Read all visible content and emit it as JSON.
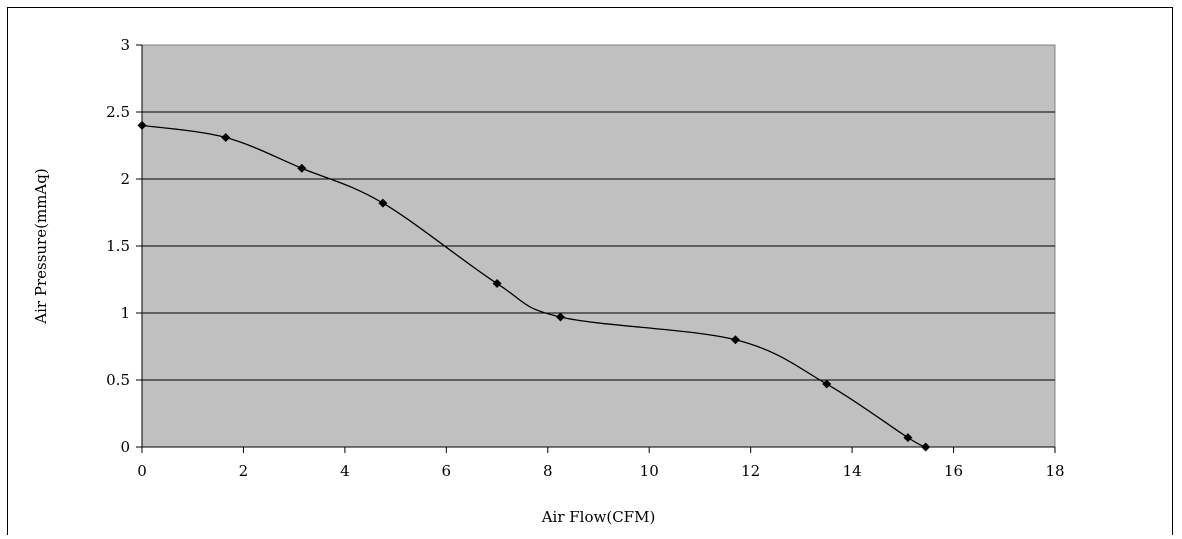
{
  "chart_data": {
    "type": "line",
    "xlabel": "Air Flow(CFM)",
    "ylabel": "Air Pressure(mmAq)",
    "xlim": [
      0,
      18
    ],
    "ylim": [
      0,
      3
    ],
    "xticks": [
      0,
      2,
      4,
      6,
      8,
      10,
      12,
      14,
      16,
      18
    ],
    "yticks": [
      0,
      0.5,
      1,
      1.5,
      2,
      2.5,
      3
    ],
    "grid": "horizontal",
    "legend": "none",
    "smooth": true,
    "marker": "diamond",
    "colors": {
      "plot_background": "#c0c0c0",
      "line": "#000000",
      "marker": "#000000",
      "gridline": "#000000"
    },
    "series": [
      {
        "x": [
          0,
          1.65,
          3.15,
          4.75,
          7.0,
          8.25,
          11.7,
          13.5,
          15.1,
          15.45
        ],
        "y": [
          2.4,
          2.31,
          2.08,
          1.82,
          1.22,
          0.97,
          0.8,
          0.47,
          0.07,
          0.0
        ]
      }
    ]
  }
}
